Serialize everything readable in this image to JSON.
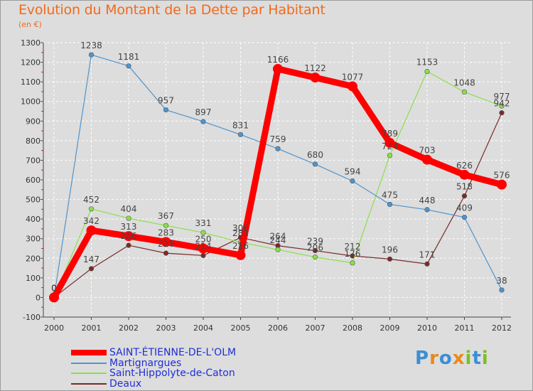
{
  "header": {
    "title": "Evolution du Montant de la Dette par Habitant",
    "unit": "(en €)"
  },
  "brand": {
    "name": "Proxiti"
  },
  "chart_data": {
    "type": "line",
    "title": "Evolution du Montant de la Dette par Habitant",
    "ylabel": "(en €)",
    "x": [
      "2000",
      "2001",
      "2002",
      "2003",
      "2004",
      "2005",
      "2006",
      "2007",
      "2008",
      "2009",
      "2010",
      "2011",
      "2012"
    ],
    "ylim": [
      -100,
      1300
    ],
    "yticks": [
      -100,
      0,
      100,
      200,
      300,
      400,
      500,
      600,
      700,
      800,
      900,
      1000,
      1100,
      1200,
      1300
    ],
    "grid": true,
    "series": [
      {
        "name": "SAINT-ÉTIENNE-DE-L'OLM",
        "color": "#ff0000",
        "values": [
          0,
          342,
          313,
          283,
          250,
          216,
          1166,
          1122,
          1077,
          789,
          703,
          626,
          576
        ],
        "labels": [
          "0",
          "342",
          "313",
          "283",
          "250",
          "216",
          "1166",
          "1122",
          "1077",
          "789",
          "703",
          "626",
          "576"
        ]
      },
      {
        "name": "Martignargues",
        "color": "#4f94cd",
        "values": [
          0,
          1238,
          1181,
          957,
          897,
          831,
          759,
          680,
          594,
          475,
          448,
          409,
          38
        ],
        "labels": [
          "0",
          "1238",
          "1181",
          "957",
          "897",
          "831",
          "759",
          "680",
          "594",
          "475",
          "448",
          "409",
          "38"
        ]
      },
      {
        "name": "Saint-Hippolyte-de-Caton",
        "color": "#8cdf4c",
        "values": [
          0,
          452,
          404,
          367,
          331,
          281,
          244,
          206,
          176,
          724,
          1153,
          1048,
          977
        ],
        "labels": [
          "0",
          "452",
          "404",
          "367",
          "331",
          "281",
          "244",
          "206",
          "176",
          "724",
          "1153",
          "1048",
          "977"
        ]
      },
      {
        "name": "Deaux",
        "color": "#7a2a2a",
        "values": [
          0,
          147,
          266,
          226,
          214,
          306,
          264,
          239,
          212,
          196,
          171,
          518,
          942
        ],
        "labels": [
          "0",
          "147",
          "266",
          "226",
          "214",
          "306",
          "264",
          "239",
          "212",
          "196",
          "171",
          "518",
          "942"
        ]
      }
    ]
  }
}
